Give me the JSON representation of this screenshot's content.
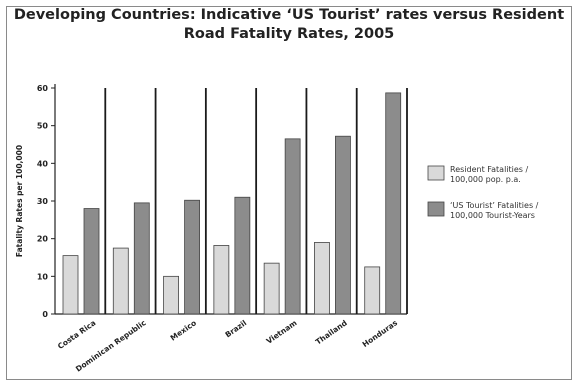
{
  "chart_data": {
    "type": "bar",
    "title": "Developing Countries: Indicative ‘US Tourist’ rates versus Resident Road Fatality Rates, 2005",
    "title_lines": [
      "Developing Countries: Indicative ‘US Tourist’ rates versus Resident",
      "Road Fatality Rates, 2005"
    ],
    "xlabel": "",
    "ylabel": "Fatality Rates per 100,000",
    "ylim": [
      0,
      60
    ],
    "yticks": [
      0,
      10,
      20,
      30,
      40,
      50,
      60
    ],
    "categories": [
      "Costa Rica",
      "Dominican Republic",
      "Mexico",
      "Brazil",
      "Vietnam",
      "Thailand",
      "Honduras"
    ],
    "series": [
      {
        "name": "Resident Fatalities / 100,000 pop. p.a.",
        "legend_lines": [
          "Resident Fatalities /",
          "100,000 pop. p.a."
        ],
        "color": "#d9d9d9",
        "values": [
          15.5,
          17.5,
          10,
          18.2,
          13.5,
          19,
          12.5
        ]
      },
      {
        "name": "‘US Tourist’ Fatalities / 100,000 Tourist-Years",
        "legend_lines": [
          "‘US Tourist’ Fatalities /",
          "100,000 Tourist-Years"
        ],
        "color": "#8c8c8c",
        "values": [
          28,
          29.5,
          30.2,
          31,
          46.5,
          47.2,
          58.7
        ]
      }
    ],
    "grid": false,
    "legend_position": "right"
  }
}
